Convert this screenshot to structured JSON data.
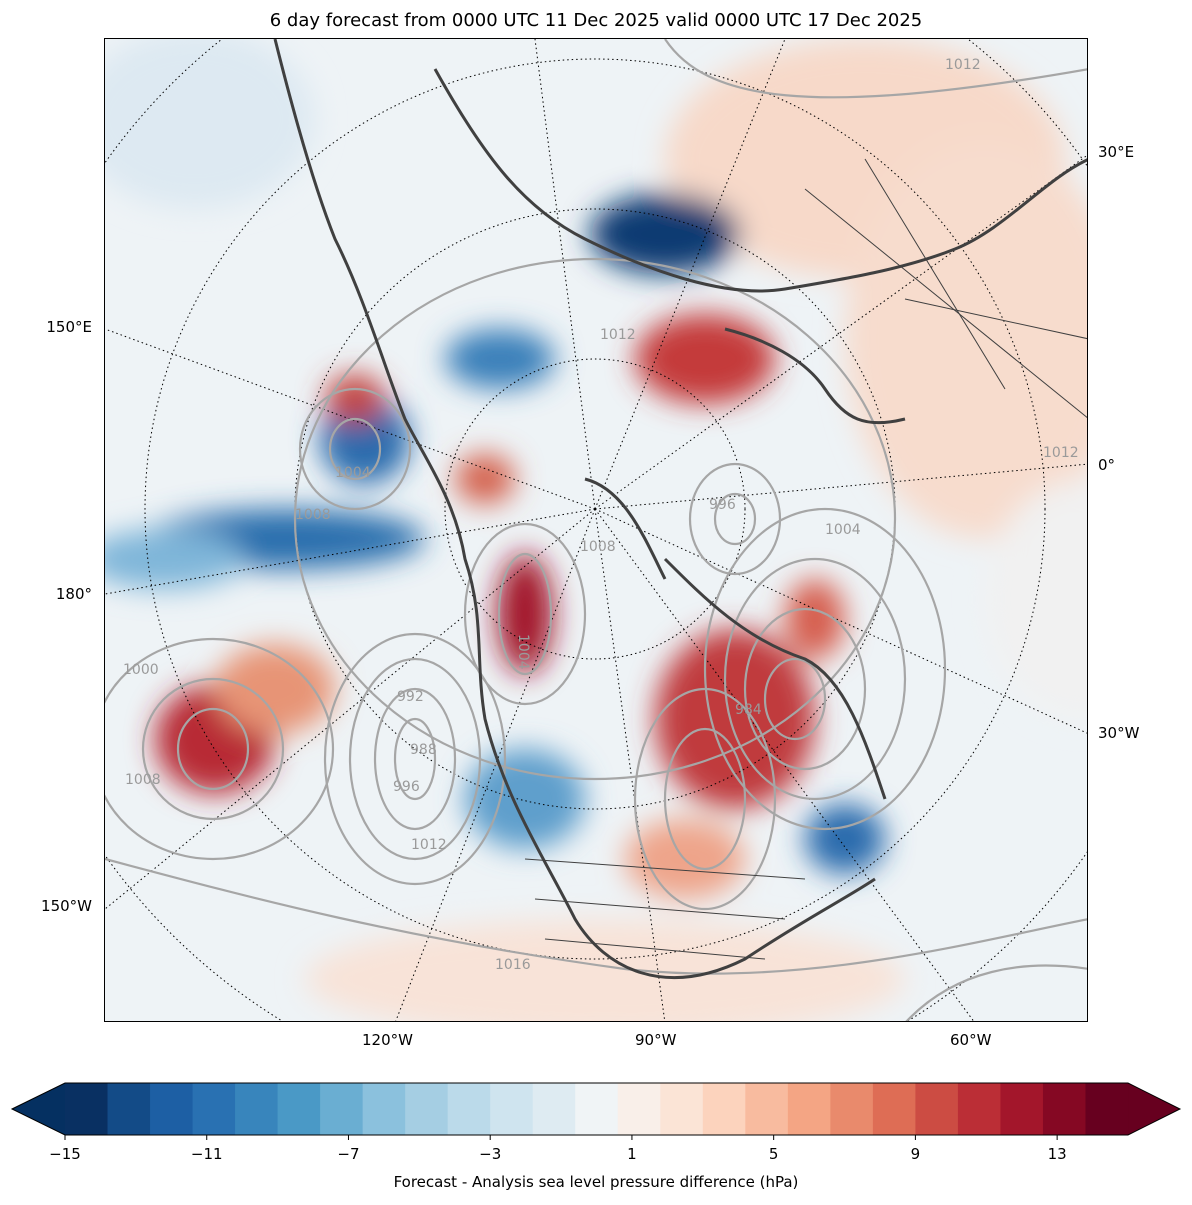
{
  "title": "6 day forecast from 0000 UTC 11 Dec 2025 valid 0000 UTC 17 Dec 2025",
  "map": {
    "left_labels": [
      "150°E",
      "180°",
      "150°W"
    ],
    "right_labels": [
      "30°E",
      "0°",
      "30°W"
    ],
    "bottom_labels": [
      "120°W",
      "90°W",
      "60°W"
    ],
    "isobar_labels": [
      "1012",
      "1012",
      "1012",
      "1008",
      "1008",
      "1008",
      "1004",
      "1004",
      "1004",
      "996",
      "996",
      "992",
      "988",
      "984",
      "1016",
      "1012",
      "1000"
    ]
  },
  "colorbar": {
    "label": "Forecast - Analysis sea level pressure difference (hPa)",
    "tick_labels": [
      "−15",
      "−11",
      "−7",
      "−3",
      "1",
      "5",
      "9",
      "13"
    ],
    "min": -15,
    "max": 15,
    "step": 1,
    "colors": [
      "#093062",
      "#134b87",
      "#1d5fa4",
      "#2971b2",
      "#3885bc",
      "#4a99c6",
      "#6aaed2",
      "#8bc1dd",
      "#a5cee3",
      "#bbdaea",
      "#cfe4ef",
      "#deebf2",
      "#f0f4f6",
      "#f9efe9",
      "#fbe4d6",
      "#fcd3bd",
      "#f8bb9f",
      "#f4a584",
      "#e98a6c",
      "#de6d55",
      "#cc4c43",
      "#bb2e36",
      "#a3162b",
      "#850823",
      "#67001f"
    ],
    "extend_low_color": "#053061",
    "extend_high_color": "#67001f"
  }
}
